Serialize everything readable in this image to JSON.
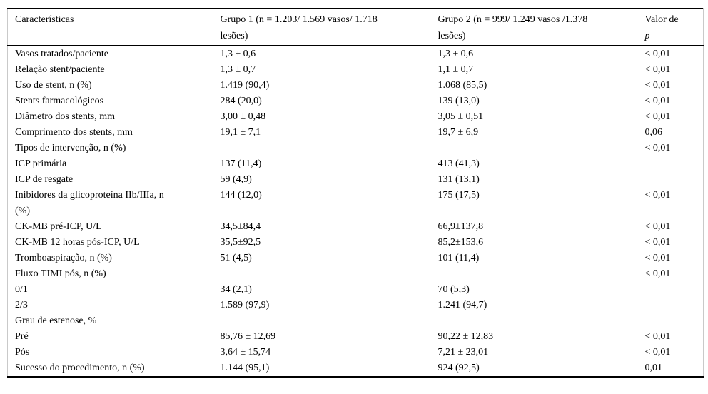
{
  "page": {
    "background_color": "#ffffff",
    "text_color": "#000000",
    "rule_color": "#000000",
    "edge_rule_color": "#c9c9c9"
  },
  "table": {
    "headers": {
      "characteristics": "Características",
      "group1_line1": "Grupo 1 (n = 1.203/ 1.569 vasos/ 1.718",
      "group1_line2": "lesões)",
      "group2_line1": "Grupo 2 (n = 999/ 1.249 vasos /1.378",
      "group2_line2": "lesões)",
      "p_line1": "Valor de",
      "p_line2": "p"
    },
    "rows": [
      {
        "label": "Vasos tratados/paciente",
        "group1": "1,3 ± 0,6",
        "group2": "1,3 ± 0,6",
        "p": "< 0,01"
      },
      {
        "label": "Relação stent/paciente",
        "group1": "1,3 ± 0,7",
        "group2": "1,1 ± 0,7",
        "p": "< 0,01"
      },
      {
        "label": "Uso de stent, n (%)",
        "group1": "1.419 (90,4)",
        "group2": "1.068 (85,5)",
        "p": "< 0,01"
      },
      {
        "label": "Stents farmacológicos",
        "group1": "284 (20,0)",
        "group2": "139 (13,0)",
        "p": "< 0,01"
      },
      {
        "label": "Diâmetro dos stents, mm",
        "group1": "3,00 ± 0,48",
        "group2": "3,05 ± 0,51",
        "p": "< 0,01"
      },
      {
        "label": "Comprimento dos stents, mm",
        "group1": "19,1 ± 7,1",
        "group2": "19,7 ± 6,9",
        "p": "0,06"
      },
      {
        "label": "Tipos de intervenção, n (%)",
        "group1": "",
        "group2": "",
        "p": "< 0,01"
      },
      {
        "label": "ICP primária",
        "group1": "137 (11,4)",
        "group2": "413 (41,3)",
        "p": ""
      },
      {
        "label": "ICP de resgate",
        "group1": "59 (4,9)",
        "group2": "131 (13,1)",
        "p": ""
      },
      {
        "label": "Inibidores da glicoproteína IIb/IIIa, n",
        "label_line2": "(%)",
        "group1": "144 (12,0)",
        "group2": "175 (17,5)",
        "p": "< 0,01"
      },
      {
        "label": "CK-MB pré-ICP, U/L",
        "group1": "34,5±84,4",
        "group2": "66,9±137,8",
        "p": "< 0,01"
      },
      {
        "label": "CK-MB 12 horas pós-ICP, U/L",
        "group1": "35,5±92,5",
        "group2": "85,2±153,6",
        "p": "< 0,01"
      },
      {
        "label": "Tromboaspiração, n (%)",
        "group1": "51 (4,5)",
        "group2": "101 (11,4)",
        "p": "< 0,01"
      },
      {
        "label": "Fluxo TIMI pós, n (%)",
        "group1": "",
        "group2": "",
        "p": "< 0,01"
      },
      {
        "label": "0/1",
        "group1": "34 (2,1)",
        "group2": "70 (5,3)",
        "p": ""
      },
      {
        "label": "2/3",
        "group1": "1.589 (97,9)",
        "group2": "1.241 (94,7)",
        "p": ""
      },
      {
        "label": "Grau de estenose, %",
        "group1": "",
        "group2": "",
        "p": ""
      },
      {
        "label": "Pré",
        "group1": "85,76 ± 12,69",
        "group2": "90,22 ± 12,83",
        "p": "< 0,01"
      },
      {
        "label": "Pós",
        "group1": "3,64 ± 15,74",
        "group2": "7,21 ± 23,01",
        "p": "< 0,01"
      },
      {
        "label": "Sucesso do procedimento, n (%)",
        "group1": "1.144 (95,1)",
        "group2": "924 (92,5)",
        "p": "0,01"
      }
    ]
  }
}
